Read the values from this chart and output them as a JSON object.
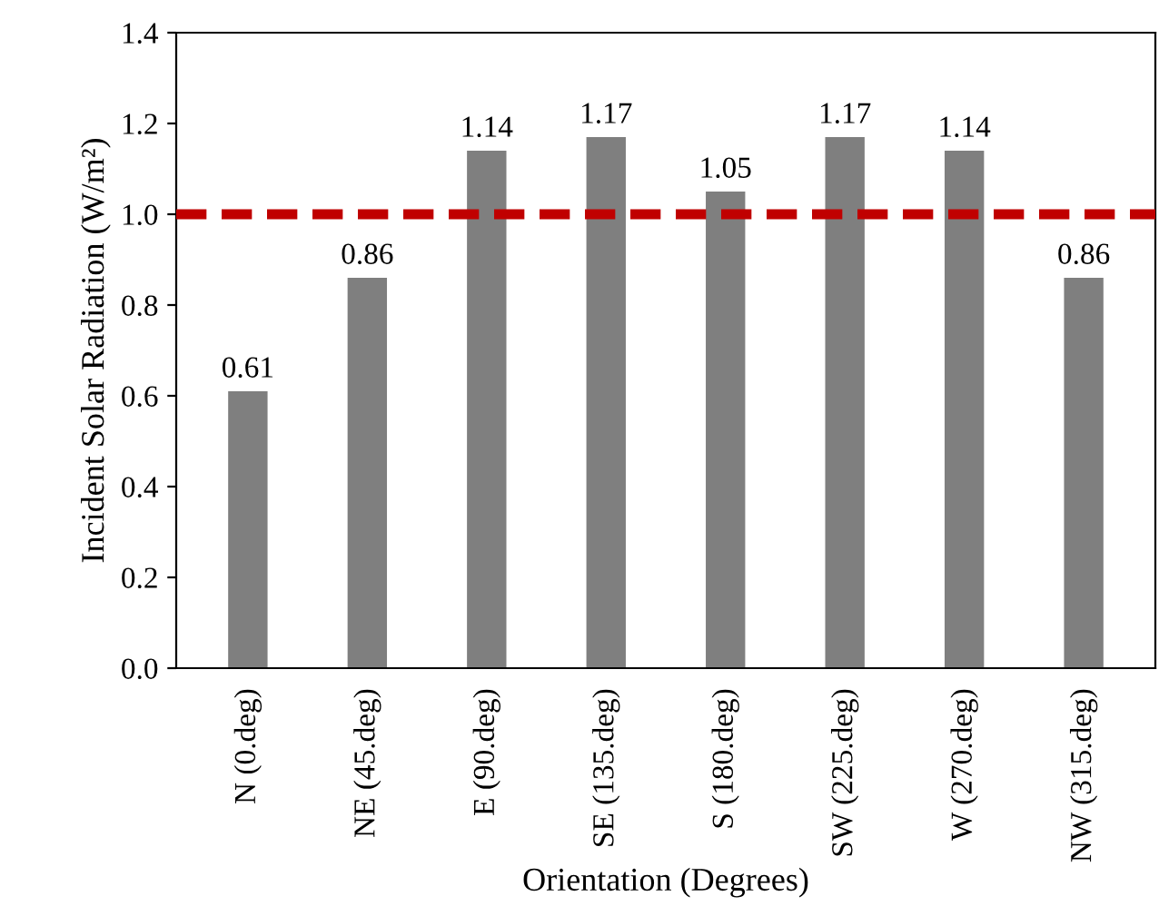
{
  "chart_data": {
    "type": "bar",
    "xlabel": "Orientation (Degrees)",
    "ylabel": "Incident Solar Radiation (W/m²)",
    "categories": [
      "N (0.deg)",
      "NE (45.deg)",
      "E (90.deg)",
      "SE (135.deg)",
      "S (180.deg)",
      "SW (225.deg)",
      "W (270.deg)",
      "NW (315.deg)"
    ],
    "values": [
      0.61,
      0.86,
      1.14,
      1.17,
      1.05,
      1.17,
      1.14,
      0.86
    ],
    "color": "#7f7f7f",
    "ylim": [
      0,
      1.4
    ],
    "yticks": [
      {
        "value": 0,
        "label": "0.0"
      },
      {
        "value": 0.2,
        "label": "0.2"
      },
      {
        "value": 0.4,
        "label": "0.4"
      },
      {
        "value": 0.6,
        "label": "0.6"
      },
      {
        "value": 0.8,
        "label": "0.8"
      },
      {
        "value": 1.0,
        "label": "1.0"
      },
      {
        "value": 1.2,
        "label": "1.2"
      },
      {
        "value": 1.4,
        "label": "1.4"
      }
    ],
    "ref_lines": [
      {
        "axis": "y",
        "value": 1.0,
        "color": "#c00000",
        "line_style": "dashed"
      }
    ],
    "data_labels": true,
    "grid": false,
    "legend": false
  }
}
